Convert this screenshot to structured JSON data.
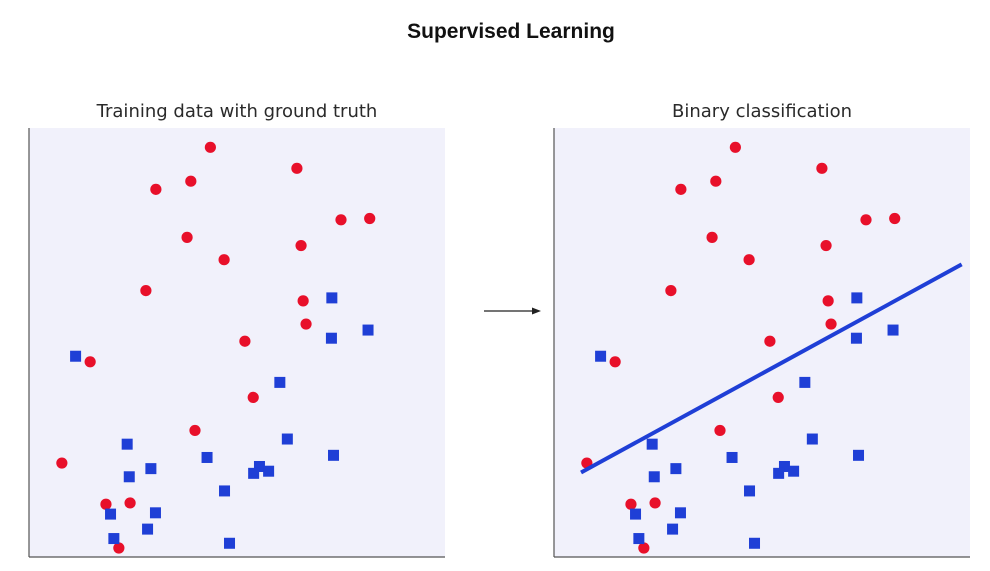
{
  "title": "Supervised Learning",
  "colors": {
    "panel_background": "#f1f1fb",
    "axis": "#555555",
    "class_circle": "#e8102a",
    "class_square": "#1f3fd6",
    "decision_line": "#1f3fd6",
    "arrow": "#222222"
  },
  "chart_data": [
    {
      "type": "scatter",
      "title": "Training data with ground truth",
      "xlim": [
        0,
        1
      ],
      "ylim": [
        0,
        1
      ],
      "grid": false,
      "series": [
        {
          "marker": "circle",
          "color": "#e8102a",
          "points": [
            [
              0.436,
              0.955
            ],
            [
              0.644,
              0.906
            ],
            [
              0.389,
              0.876
            ],
            [
              0.305,
              0.857
            ],
            [
              0.75,
              0.786
            ],
            [
              0.819,
              0.789
            ],
            [
              0.38,
              0.745
            ],
            [
              0.654,
              0.726
            ],
            [
              0.469,
              0.693
            ],
            [
              0.281,
              0.621
            ],
            [
              0.659,
              0.597
            ],
            [
              0.666,
              0.543
            ],
            [
              0.519,
              0.503
            ],
            [
              0.147,
              0.455
            ],
            [
              0.539,
              0.372
            ],
            [
              0.399,
              0.295
            ],
            [
              0.079,
              0.219
            ],
            [
              0.185,
              0.123
            ],
            [
              0.243,
              0.126
            ],
            [
              0.216,
              0.021
            ]
          ]
        },
        {
          "marker": "square",
          "color": "#1f3fd6",
          "points": [
            [
              0.728,
              0.604
            ],
            [
              0.815,
              0.529
            ],
            [
              0.727,
              0.51
            ],
            [
              0.112,
              0.468
            ],
            [
              0.603,
              0.407
            ],
            [
              0.236,
              0.263
            ],
            [
              0.621,
              0.275
            ],
            [
              0.732,
              0.237
            ],
            [
              0.428,
              0.232
            ],
            [
              0.293,
              0.206
            ],
            [
              0.554,
              0.211
            ],
            [
              0.576,
              0.2
            ],
            [
              0.54,
              0.195
            ],
            [
              0.241,
              0.187
            ],
            [
              0.47,
              0.154
            ],
            [
              0.304,
              0.103
            ],
            [
              0.196,
              0.1
            ],
            [
              0.285,
              0.065
            ],
            [
              0.204,
              0.043
            ],
            [
              0.482,
              0.032
            ]
          ]
        }
      ]
    },
    {
      "type": "scatter",
      "title": "Binary classification",
      "xlim": [
        0,
        1
      ],
      "ylim": [
        0,
        1
      ],
      "grid": false,
      "series": [
        {
          "marker": "circle",
          "color": "#e8102a",
          "points": [
            [
              0.436,
              0.955
            ],
            [
              0.644,
              0.906
            ],
            [
              0.389,
              0.876
            ],
            [
              0.305,
              0.857
            ],
            [
              0.75,
              0.786
            ],
            [
              0.819,
              0.789
            ],
            [
              0.38,
              0.745
            ],
            [
              0.654,
              0.726
            ],
            [
              0.469,
              0.693
            ],
            [
              0.281,
              0.621
            ],
            [
              0.659,
              0.597
            ],
            [
              0.666,
              0.543
            ],
            [
              0.519,
              0.503
            ],
            [
              0.147,
              0.455
            ],
            [
              0.539,
              0.372
            ],
            [
              0.399,
              0.295
            ],
            [
              0.079,
              0.219
            ],
            [
              0.185,
              0.123
            ],
            [
              0.243,
              0.126
            ],
            [
              0.216,
              0.021
            ]
          ]
        },
        {
          "marker": "square",
          "color": "#1f3fd6",
          "points": [
            [
              0.728,
              0.604
            ],
            [
              0.815,
              0.529
            ],
            [
              0.727,
              0.51
            ],
            [
              0.112,
              0.468
            ],
            [
              0.603,
              0.407
            ],
            [
              0.236,
              0.263
            ],
            [
              0.621,
              0.275
            ],
            [
              0.732,
              0.237
            ],
            [
              0.428,
              0.232
            ],
            [
              0.293,
              0.206
            ],
            [
              0.554,
              0.211
            ],
            [
              0.576,
              0.2
            ],
            [
              0.54,
              0.195
            ],
            [
              0.241,
              0.187
            ],
            [
              0.47,
              0.154
            ],
            [
              0.304,
              0.103
            ],
            [
              0.196,
              0.1
            ],
            [
              0.285,
              0.065
            ],
            [
              0.204,
              0.043
            ],
            [
              0.482,
              0.032
            ]
          ]
        }
      ],
      "decision_boundary": {
        "color": "#1f3fd6",
        "points": [
          [
            0.065,
            0.197
          ],
          [
            0.98,
            0.682
          ]
        ]
      }
    }
  ]
}
